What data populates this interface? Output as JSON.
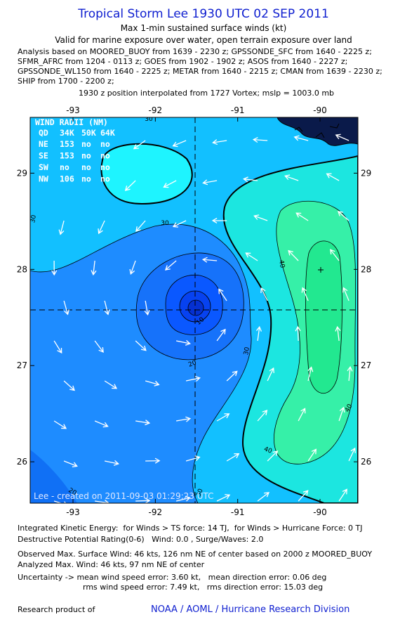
{
  "header": {
    "title": "Tropical Storm Lee 1930 UTC 02 SEP 2011",
    "subtitle": "Max 1-min sustained surface winds (kt)",
    "validity": "Valid for marine exposure over water, open terrain exposure over land",
    "analysis_lines": [
      "Analysis based on MOORED_BUOY from 1639 - 2230 z; GPSSONDE_SFC from 1640 - 2225 z;",
      "SFMR_AFRC from 1204 - 0113 z; GOES from 1902 - 1902 z; ASOS from 1640 - 2227 z;",
      "GPSSONDE_WL150 from 1640 - 2225 z; METAR from 1640 - 2215 z; CMAN from 1639 - 2230 z;",
      "SHIP from 1700 - 2200 z;"
    ],
    "position_note": "1930 z position interpolated from 1727 Vortex; mslp = 1003.0 mb"
  },
  "map": {
    "lon_range": [
      -93.52,
      -89.54
    ],
    "lat_range": [
      25.57,
      29.58
    ],
    "lon_ticks": [
      -93,
      -92,
      -91,
      -90
    ],
    "lat_ticks": [
      26,
      27,
      28,
      29
    ],
    "contour_labels": [
      30,
      30,
      30,
      20,
      10,
      30,
      40,
      40,
      40,
      20,
      30
    ],
    "credit": "Lee - created on 2011-09-03 01:29:23 UTC"
  },
  "wind_radii": {
    "title": "WIND RADII (NM)",
    "header": [
      "QD",
      "34K",
      "50K",
      "64K"
    ],
    "rows": [
      [
        "NE",
        153,
        "no",
        "no"
      ],
      [
        "SE",
        153,
        "no",
        "no"
      ],
      [
        "SW",
        "no",
        "no",
        "no"
      ],
      [
        "NW",
        106,
        "no",
        "no"
      ]
    ]
  },
  "footer": {
    "lines": [
      "Integrated Kinetic Energy:  for Winds > TS force: 14 TJ,  for Winds > Hurricane Force: 0 TJ",
      "Destructive Potential Rating(0-6)   Wind: 0.0 , Surge/Waves: 2.0",
      "Observed Max. Surface Wind: 46 kts, 126 nm NE of center based on 2000 z MOORED_BUOY",
      "Analyzed Max. Wind: 46 kts, 97 nm NE of center",
      "Uncertainty -> mean wind speed error: 3.60 kt,   mean direction error: 0.06 deg",
      "rms wind speed error: 7.49 kt,   rms direction error: 15.03 deg"
    ],
    "research": "Research product of",
    "org": "NOAA / AOML / Hurricane Research Division"
  }
}
